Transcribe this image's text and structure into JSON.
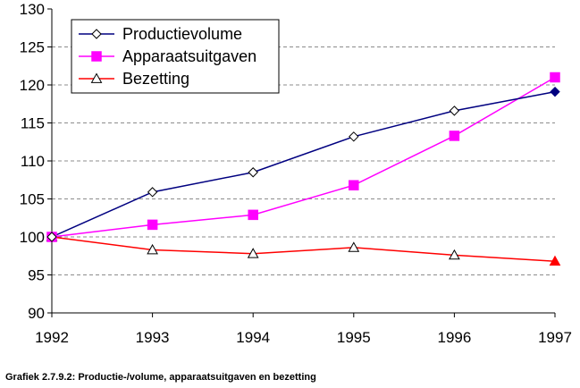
{
  "chart_data": {
    "type": "line",
    "title": "",
    "xlabel": "",
    "ylabel": "",
    "x": [
      "1992",
      "1993",
      "1994",
      "1995",
      "1996",
      "1997"
    ],
    "ylim": [
      90,
      130
    ],
    "yticks": [
      "90",
      "95",
      "100",
      "105",
      "110",
      "115",
      "120",
      "125",
      "130"
    ],
    "grid": true,
    "legend_position": "top-left",
    "series": [
      {
        "name": "Productievolume",
        "values": [
          100,
          105.9,
          108.5,
          113.2,
          116.6,
          119.1
        ],
        "color": "#000080",
        "marker": "diamond-open"
      },
      {
        "name": "Apparaatsuitgaven",
        "values": [
          100,
          101.6,
          102.9,
          106.8,
          113.3,
          121.0
        ],
        "color": "#ff00ff",
        "marker": "square-filled"
      },
      {
        "name": "Bezetting",
        "values": [
          100,
          98.3,
          97.8,
          98.6,
          97.6,
          96.8
        ],
        "color": "#ff0000",
        "marker": "triangle-open"
      }
    ]
  },
  "caption": "Grafiek 2.7.9.2: Productie-/volume, apparaatsuitgaven en bezetting"
}
